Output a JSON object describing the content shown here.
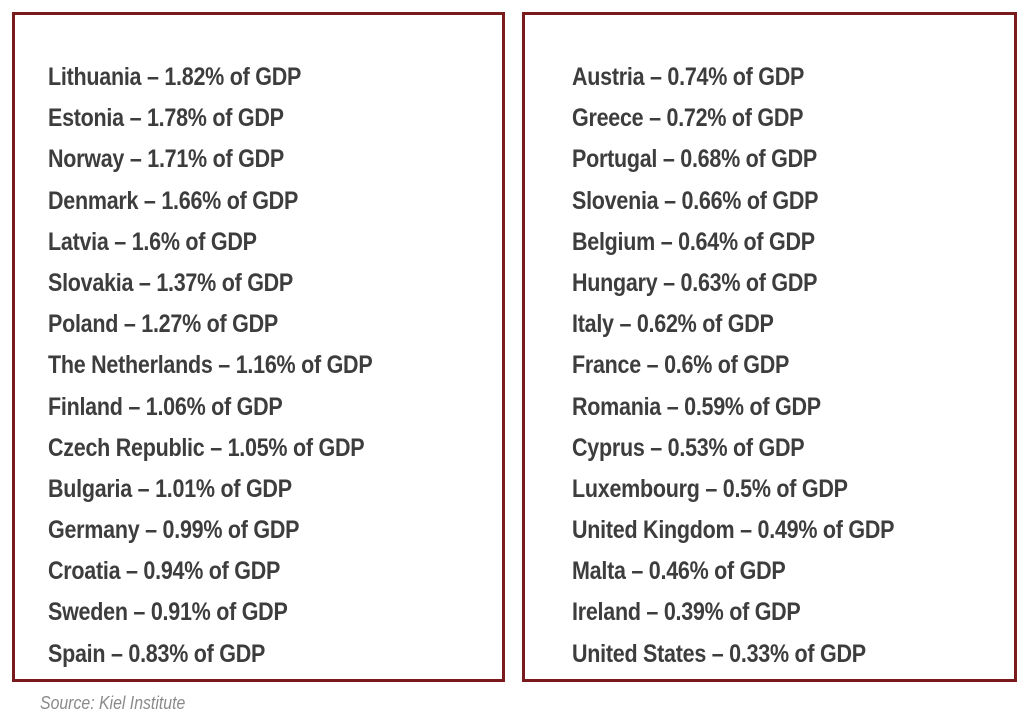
{
  "left_column": [
    "Lithuania – 1.82% of GDP",
    "Estonia – 1.78% of GDP",
    "Norway – 1.71% of GDP",
    "Denmark – 1.66% of GDP",
    "Latvia – 1.6% of GDP",
    "Slovakia – 1.37% of GDP",
    "Poland – 1.27% of GDP",
    "The Netherlands – 1.16% of GDP",
    "Finland – 1.06% of GDP",
    "Czech Republic – 1.05% of GDP",
    "Bulgaria – 1.01% of GDP",
    "Germany – 0.99% of GDP",
    "Croatia – 0.94% of GDP",
    "Sweden – 0.91% of GDP",
    "Spain – 0.83% of GDP"
  ],
  "right_column": [
    "Austria – 0.74% of GDP",
    "Greece – 0.72% of GDP",
    "Portugal – 0.68% of GDP",
    "Slovenia – 0.66% of GDP",
    "Belgium – 0.64% of GDP",
    "Hungary – 0.63% of GDP",
    "Italy – 0.62% of GDP",
    "France – 0.6% of GDP",
    "Romania – 0.59% of GDP",
    "Cyprus – 0.53% of GDP",
    "Luxembourg – 0.5% of GDP",
    "United Kingdom – 0.49% of GDP",
    "Malta – 0.46% of GDP",
    "Ireland – 0.39% of GDP",
    "United States – 0.33% of GDP"
  ],
  "source": "Source: Kiel Institute",
  "colors": {
    "border": "#7a1a1c",
    "text": "#3d3d3d",
    "source_text": "#8a8a8a"
  }
}
